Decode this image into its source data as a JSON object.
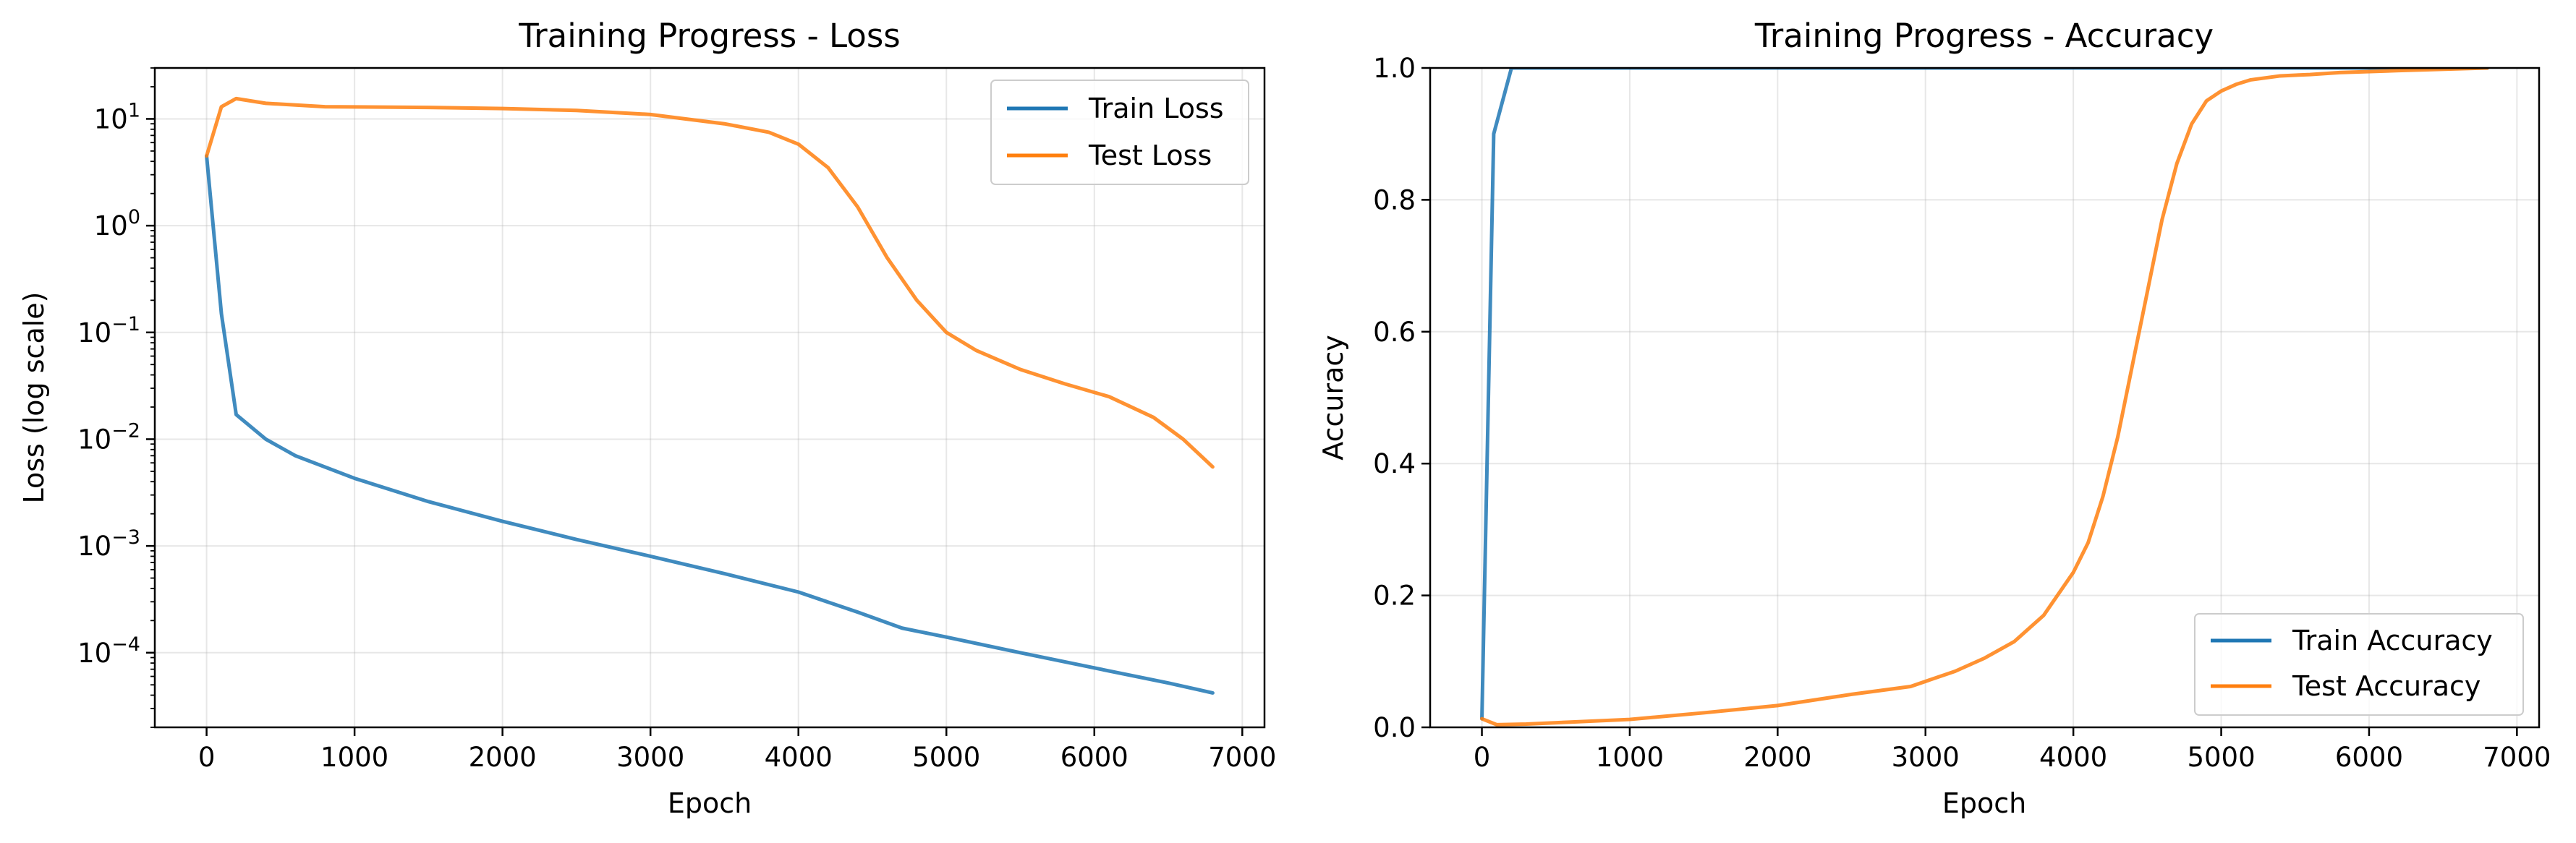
{
  "chart_data": [
    {
      "type": "line",
      "title": "Training Progress - Loss",
      "xlabel": "Epoch",
      "ylabel": "Loss (log scale)",
      "yscale": "log",
      "xlim": [
        -350,
        7150
      ],
      "ylim": [
        2e-05,
        30
      ],
      "xticks": [
        0,
        1000,
        2000,
        3000,
        4000,
        5000,
        6000,
        7000
      ],
      "yticks": [
        {
          "value": 0.0001,
          "base": "10",
          "exp": "−4"
        },
        {
          "value": 0.001,
          "base": "10",
          "exp": "−3"
        },
        {
          "value": 0.01,
          "base": "10",
          "exp": "−2"
        },
        {
          "value": 0.1,
          "base": "10",
          "exp": "−1"
        },
        {
          "value": 1,
          "base": "10",
          "exp": "0"
        },
        {
          "value": 10,
          "base": "10",
          "exp": "1"
        }
      ],
      "grid": true,
      "legend": "upper right",
      "series": [
        {
          "name": "Train Loss",
          "color": "#1f77b4",
          "x": [
            0,
            100,
            200,
            400,
            600,
            1000,
            1500,
            2000,
            2500,
            3000,
            3500,
            4000,
            4400,
            4700,
            5000,
            5500,
            6000,
            6500,
            6800
          ],
          "y": [
            4.5,
            0.15,
            0.017,
            0.01,
            0.007,
            0.0043,
            0.0026,
            0.0017,
            0.00115,
            0.0008,
            0.00055,
            0.00037,
            0.00024,
            0.00017,
            0.00014,
            0.0001,
            7.2e-05,
            5.2e-05,
            4.2e-05
          ]
        },
        {
          "name": "Test Loss",
          "color": "#ff7f0e",
          "x": [
            0,
            100,
            200,
            400,
            800,
            1500,
            2000,
            2500,
            3000,
            3500,
            3800,
            4000,
            4200,
            4400,
            4600,
            4800,
            5000,
            5200,
            5500,
            5800,
            6100,
            6400,
            6600,
            6800
          ],
          "y": [
            4.5,
            13,
            15.5,
            14,
            13,
            12.8,
            12.5,
            12,
            11,
            9,
            7.5,
            5.8,
            3.5,
            1.5,
            0.5,
            0.2,
            0.1,
            0.068,
            0.045,
            0.033,
            0.025,
            0.016,
            0.01,
            0.0055
          ]
        }
      ]
    },
    {
      "type": "line",
      "title": "Training Progress - Accuracy",
      "xlabel": "Epoch",
      "ylabel": "Accuracy",
      "xlim": [
        -350,
        7150
      ],
      "ylim": [
        0,
        1
      ],
      "xticks": [
        0,
        1000,
        2000,
        3000,
        4000,
        5000,
        6000,
        7000
      ],
      "yticks": [
        0.0,
        0.2,
        0.4,
        0.6,
        0.8,
        1.0
      ],
      "grid": true,
      "legend": "lower right",
      "series": [
        {
          "name": "Train Accuracy",
          "color": "#1f77b4",
          "x": [
            0,
            80,
            200,
            6800
          ],
          "y": [
            0.013,
            0.9,
            1.0,
            1.0
          ]
        },
        {
          "name": "Test Accuracy",
          "color": "#ff7f0e",
          "x": [
            0,
            100,
            300,
            600,
            1000,
            1500,
            2000,
            2500,
            2900,
            3200,
            3400,
            3600,
            3800,
            4000,
            4100,
            4200,
            4300,
            4400,
            4500,
            4600,
            4700,
            4800,
            4900,
            5000,
            5100,
            5200,
            5400,
            5600,
            5800,
            6200,
            6800
          ],
          "y": [
            0.013,
            0.004,
            0.005,
            0.008,
            0.012,
            0.022,
            0.033,
            0.05,
            0.062,
            0.085,
            0.105,
            0.13,
            0.17,
            0.235,
            0.28,
            0.35,
            0.44,
            0.55,
            0.66,
            0.77,
            0.855,
            0.915,
            0.95,
            0.965,
            0.975,
            0.982,
            0.988,
            0.99,
            0.993,
            0.996,
            1.0
          ]
        }
      ]
    }
  ]
}
